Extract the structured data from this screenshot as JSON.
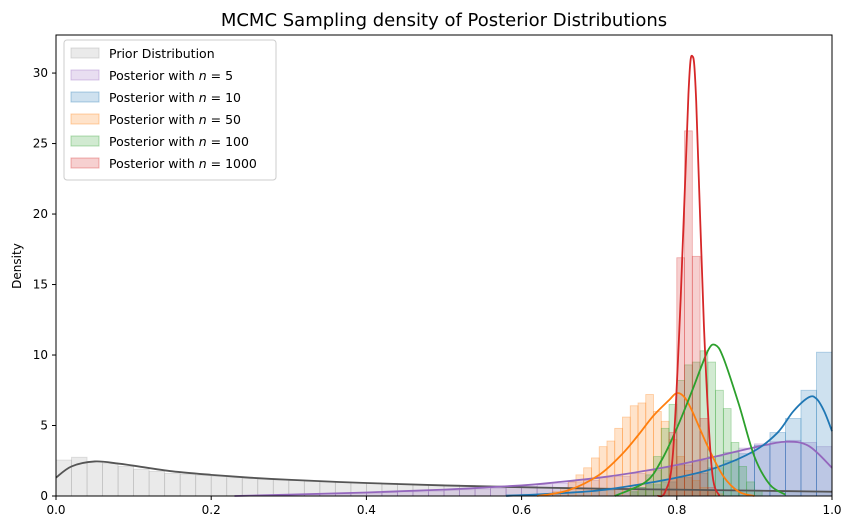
{
  "chart_data": {
    "type": "histogram-kde",
    "title": "MCMC Sampling density of Posterior Distributions",
    "xlabel": "",
    "ylabel": "Density",
    "xlim": [
      0,
      1
    ],
    "ylim": [
      0,
      32.7
    ],
    "xticks": [
      0.0,
      0.2,
      0.4,
      0.6,
      0.8,
      1.0
    ],
    "xtick_labels": [
      "0.0",
      "0.2",
      "0.4",
      "0.6",
      "0.8",
      "1.0"
    ],
    "yticks": [
      0,
      5,
      10,
      15,
      20,
      25,
      30
    ],
    "ytick_labels": [
      "0",
      "5",
      "10",
      "15",
      "20",
      "25",
      "30"
    ],
    "grid": false,
    "legend_position": "top-left",
    "series": [
      {
        "name": "Prior Distribution",
        "color": "#a0a0a0",
        "line_color": "#555555",
        "bins": {
          "start": 0.0,
          "width": 0.02,
          "heights": [
            2.55,
            2.75,
            2.45,
            2.3,
            2.1,
            1.9,
            1.75,
            1.6,
            1.55,
            1.45,
            1.4,
            1.3,
            1.25,
            1.2,
            1.15,
            1.1,
            1.05,
            1.0,
            0.98,
            0.95,
            0.92,
            0.9,
            0.85,
            0.82,
            0.8,
            0.78,
            0.75,
            0.72,
            0.7,
            0.68,
            0.65,
            0.62,
            0.6,
            0.58,
            0.56,
            0.54,
            0.52,
            0.5,
            0.5,
            0.48,
            0.46,
            0.45,
            0.43,
            0.42,
            0.4,
            0.4,
            0.38,
            0.37,
            0.36,
            0.35
          ]
        },
        "kde": {
          "x": [
            0,
            0.02,
            0.05,
            0.08,
            0.1,
            0.15,
            0.2,
            0.25,
            0.3,
            0.4,
            0.5,
            0.6,
            0.7,
            0.8,
            0.9,
            1.0
          ],
          "y": [
            1.3,
            2.1,
            2.45,
            2.3,
            2.15,
            1.75,
            1.5,
            1.3,
            1.15,
            0.92,
            0.75,
            0.62,
            0.52,
            0.45,
            0.38,
            0.3
          ]
        }
      },
      {
        "name": "Posterior with $n = 5$",
        "color": "#9467bd",
        "line_color": "#9467bd",
        "bins": {
          "start": 0.3,
          "width": 0.02,
          "heights": [
            0.1,
            0.1,
            0.15,
            0.15,
            0.2,
            0.2,
            0.25,
            0.3,
            0.3,
            0.35,
            0.4,
            0.45,
            0.5,
            0.55,
            0.6,
            0.7,
            0.8,
            0.9,
            1.0,
            1.1,
            1.3,
            1.4,
            1.6,
            1.8,
            2.0,
            2.2,
            2.5,
            2.8,
            3.1,
            3.4,
            3.7,
            3.85,
            3.95,
            3.8,
            3.5
          ]
        },
        "kde": {
          "x": [
            0.23,
            0.3,
            0.4,
            0.5,
            0.6,
            0.65,
            0.7,
            0.75,
            0.8,
            0.85,
            0.9,
            0.94,
            0.97,
            1.0
          ],
          "y": [
            0.0,
            0.1,
            0.25,
            0.45,
            0.75,
            1.0,
            1.3,
            1.7,
            2.2,
            2.8,
            3.45,
            3.85,
            3.55,
            2.0
          ]
        }
      },
      {
        "name": "Posterior with $n = 10$",
        "color": "#1f77b4",
        "line_color": "#1f77b4",
        "bins": {
          "start": 0.58,
          "width": 0.02,
          "heights": [
            0.1,
            0.12,
            0.15,
            0.2,
            0.25,
            0.3,
            0.4,
            0.5,
            0.6,
            0.8,
            1.0,
            1.3,
            1.6,
            2.0,
            2.5,
            3.0,
            3.6,
            4.5,
            5.5,
            7.5,
            10.2
          ]
        },
        "kde": {
          "x": [
            0.58,
            0.65,
            0.7,
            0.75,
            0.8,
            0.85,
            0.9,
            0.93,
            0.95,
            0.97,
            0.98,
            0.99,
            1.0
          ],
          "y": [
            0.0,
            0.2,
            0.4,
            0.8,
            1.3,
            2.0,
            3.2,
            4.5,
            6.0,
            7.0,
            6.9,
            6.0,
            4.6
          ]
        }
      },
      {
        "name": "Posterior with $n = 50$",
        "color": "#ff7f0e",
        "line_color": "#ff7f0e",
        "bins": {
          "start": 0.64,
          "width": 0.01,
          "heights": [
            0.3,
            0.6,
            1.0,
            1.5,
            2.0,
            2.7,
            3.5,
            3.9,
            4.8,
            5.6,
            6.4,
            6.6,
            7.2,
            6.0,
            5.3,
            4.0,
            2.8,
            1.8,
            1.1,
            0.6,
            0.3,
            0.15
          ]
        },
        "kde": {
          "x": [
            0.62,
            0.66,
            0.7,
            0.73,
            0.75,
            0.77,
            0.79,
            0.8,
            0.81,
            0.82,
            0.84,
            0.86,
            0.88,
            0.9
          ],
          "y": [
            0.0,
            0.4,
            1.5,
            3.0,
            4.3,
            5.7,
            6.8,
            7.3,
            7.0,
            6.0,
            3.5,
            1.4,
            0.3,
            0.0
          ]
        }
      },
      {
        "name": "Posterior with $n = 100$",
        "color": "#2ca02c",
        "line_color": "#2ca02c",
        "bins": {
          "start": 0.74,
          "width": 0.01,
          "heights": [
            0.3,
            0.6,
            1.5,
            2.8,
            4.8,
            6.5,
            8.2,
            9.3,
            9.5,
            10.3,
            9.5,
            7.5,
            6.2,
            3.8,
            2.1,
            1.0,
            0.4
          ]
        },
        "kde": {
          "x": [
            0.72,
            0.76,
            0.78,
            0.8,
            0.82,
            0.84,
            0.85,
            0.86,
            0.88,
            0.9,
            0.92,
            0.94
          ],
          "y": [
            0.0,
            1.0,
            2.5,
            4.8,
            7.5,
            10.3,
            10.7,
            9.8,
            6.5,
            2.8,
            0.8,
            0.1
          ]
        }
      },
      {
        "name": "Posterior with $n = 1000$",
        "color": "#d62728",
        "line_color": "#d62728",
        "bins": {
          "start": 0.78,
          "width": 0.01,
          "heights": [
            0.4,
            4.5,
            16.9,
            25.9,
            17.0,
            5.5,
            0.6
          ]
        },
        "kde": {
          "x": [
            0.775,
            0.785,
            0.795,
            0.805,
            0.815,
            0.82,
            0.825,
            0.835,
            0.845,
            0.855
          ],
          "y": [
            0.0,
            0.3,
            3.0,
            14.0,
            28.5,
            31.2,
            28.0,
            12.0,
            2.0,
            0.0
          ]
        }
      }
    ]
  }
}
